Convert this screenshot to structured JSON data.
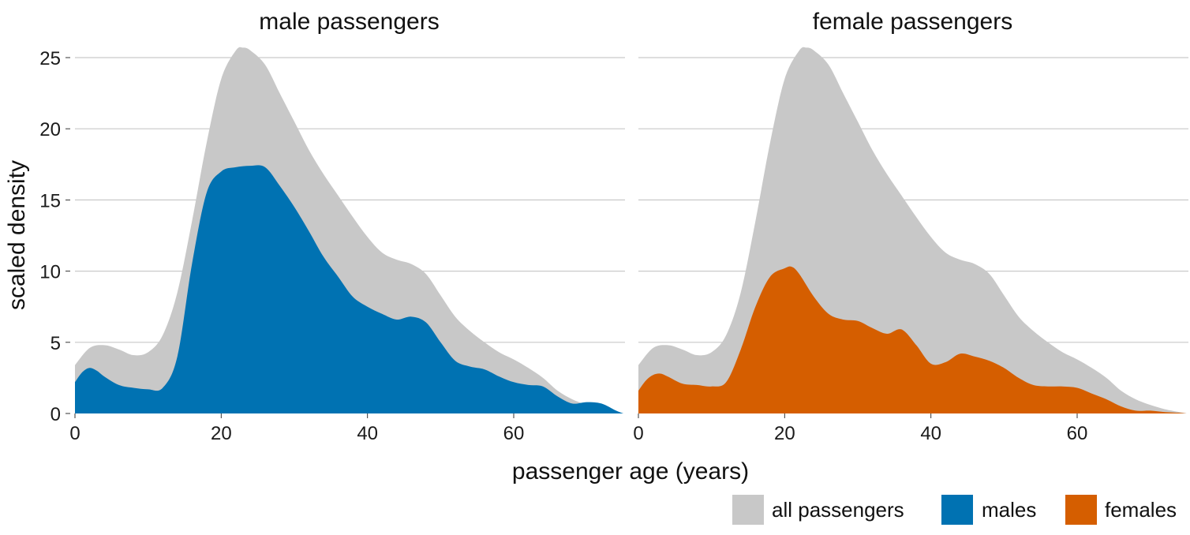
{
  "chart_data": {
    "type": "area",
    "xlabel": "passenger age (years)",
    "ylabel": "scaled density",
    "xlim": [
      0,
      75
    ],
    "ylim": [
      0,
      25
    ],
    "xticks": [
      0,
      20,
      40,
      60
    ],
    "yticks": [
      0,
      5,
      10,
      15,
      20,
      25
    ],
    "grid": "horizontal",
    "legend_position": "bottom-right",
    "legend": [
      {
        "label": "all passengers",
        "color": "#c8c8c8"
      },
      {
        "label": "males",
        "color": "#0072b2"
      },
      {
        "label": "females",
        "color": "#d55e00"
      }
    ],
    "panels": [
      {
        "title": "male passengers",
        "series": [
          {
            "name": "all passengers",
            "color": "#c8c8c8",
            "x": [
              0,
              2,
              4,
              6,
              8,
              10,
              12,
              14,
              16,
              18,
              20,
              22,
              23,
              24,
              26,
              28,
              30,
              32,
              34,
              36,
              38,
              40,
              42,
              44,
              46,
              48,
              50,
              52,
              54,
              56,
              58,
              60,
              62,
              64,
              66,
              68,
              70,
              72,
              74,
              75
            ],
            "y": [
              3.4,
              4.6,
              4.8,
              4.5,
              4.1,
              4.3,
              5.5,
              8.5,
              13.5,
              19.0,
              23.5,
              25.5,
              25.7,
              25.5,
              24.5,
              22.5,
              20.5,
              18.5,
              16.8,
              15.3,
              13.8,
              12.4,
              11.3,
              10.8,
              10.5,
              9.8,
              8.3,
              6.8,
              5.8,
              5.0,
              4.3,
              3.8,
              3.2,
              2.5,
              1.6,
              1.0,
              0.6,
              0.3,
              0.1,
              0.0
            ]
          },
          {
            "name": "males",
            "color": "#0072b2",
            "x": [
              0,
              1,
              2,
              3,
              4,
              6,
              8,
              10,
              12,
              14,
              16,
              18,
              20,
              22,
              24,
              26,
              28,
              30,
              32,
              34,
              36,
              38,
              40,
              42,
              44,
              46,
              48,
              50,
              52,
              54,
              56,
              58,
              60,
              62,
              64,
              66,
              68,
              70,
              72,
              74,
              75
            ],
            "y": [
              2.2,
              2.9,
              3.2,
              3.0,
              2.6,
              2.0,
              1.8,
              1.7,
              1.8,
              4.0,
              10.5,
              15.5,
              17.0,
              17.3,
              17.4,
              17.3,
              16.0,
              14.5,
              12.8,
              11.0,
              9.6,
              8.2,
              7.5,
              7.0,
              6.6,
              6.8,
              6.4,
              5.0,
              3.7,
              3.3,
              3.1,
              2.6,
              2.2,
              2.0,
              1.9,
              1.2,
              0.7,
              0.8,
              0.7,
              0.2,
              0.0
            ]
          }
        ]
      },
      {
        "title": "female passengers",
        "series": [
          {
            "name": "all passengers",
            "color": "#c8c8c8",
            "x": [
              0,
              2,
              4,
              6,
              8,
              10,
              12,
              14,
              16,
              18,
              20,
              22,
              23,
              24,
              26,
              28,
              30,
              32,
              34,
              36,
              38,
              40,
              42,
              44,
              46,
              48,
              50,
              52,
              54,
              56,
              58,
              60,
              62,
              64,
              66,
              68,
              70,
              72,
              74,
              75
            ],
            "y": [
              3.4,
              4.6,
              4.8,
              4.5,
              4.1,
              4.3,
              5.5,
              8.5,
              13.5,
              19.0,
              23.5,
              25.5,
              25.7,
              25.5,
              24.5,
              22.5,
              20.5,
              18.5,
              16.8,
              15.3,
              13.8,
              12.4,
              11.3,
              10.8,
              10.5,
              9.8,
              8.3,
              6.8,
              5.8,
              5.0,
              4.3,
              3.8,
              3.2,
              2.5,
              1.6,
              1.0,
              0.6,
              0.3,
              0.1,
              0.0
            ]
          },
          {
            "name": "females",
            "color": "#d55e00",
            "x": [
              0,
              1,
              2,
              3,
              4,
              6,
              8,
              10,
              12,
              14,
              16,
              18,
              20,
              21,
              22,
              24,
              26,
              28,
              30,
              32,
              34,
              36,
              38,
              40,
              42,
              44,
              46,
              48,
              50,
              52,
              54,
              56,
              58,
              60,
              62,
              64,
              66,
              68,
              70,
              72,
              74,
              75
            ],
            "y": [
              1.6,
              2.3,
              2.7,
              2.8,
              2.6,
              2.1,
              2.0,
              1.9,
              2.2,
              4.5,
              7.5,
              9.6,
              10.2,
              10.3,
              9.8,
              8.2,
              7.0,
              6.6,
              6.5,
              6.0,
              5.6,
              5.9,
              4.8,
              3.5,
              3.6,
              4.2,
              4.0,
              3.7,
              3.2,
              2.5,
              2.0,
              1.9,
              1.9,
              1.8,
              1.4,
              1.0,
              0.5,
              0.2,
              0.2,
              0.1,
              0.05,
              0.0
            ]
          }
        ]
      }
    ]
  }
}
